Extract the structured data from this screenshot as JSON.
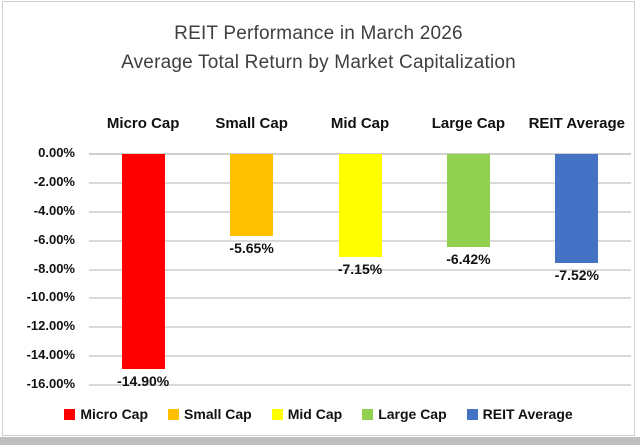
{
  "title": {
    "line1": "REIT Performance in March 2026",
    "line2": "Average Total Return by Market Capitalization"
  },
  "chart_data": {
    "type": "bar",
    "title": "REIT Performance in March 2026 — Average Total Return by Market Capitalization",
    "categories": [
      "Micro Cap",
      "Small Cap",
      "Mid Cap",
      "Large Cap",
      "REIT Average"
    ],
    "values": [
      -14.9,
      -5.65,
      -7.15,
      -6.42,
      -7.52
    ],
    "data_labels": [
      "-14.90%",
      "-5.65%",
      "-7.15%",
      "-6.42%",
      "-7.52%"
    ],
    "colors": [
      "#FF0000",
      "#FFC000",
      "#FFFF00",
      "#92D050",
      "#4472C4"
    ],
    "xlabel": "",
    "ylabel": "",
    "ylim": [
      -16,
      0
    ],
    "ytick_step": 2,
    "ytick_labels": [
      "0.00%",
      "-2.00%",
      "-4.00%",
      "-6.00%",
      "-8.00%",
      "-10.00%",
      "-12.00%",
      "-14.00%",
      "-16.00%"
    ],
    "grid": true,
    "legend_position": "bottom",
    "legend": [
      "Micro Cap",
      "Small Cap",
      "Mid Cap",
      "Large Cap",
      "REIT Average"
    ]
  }
}
